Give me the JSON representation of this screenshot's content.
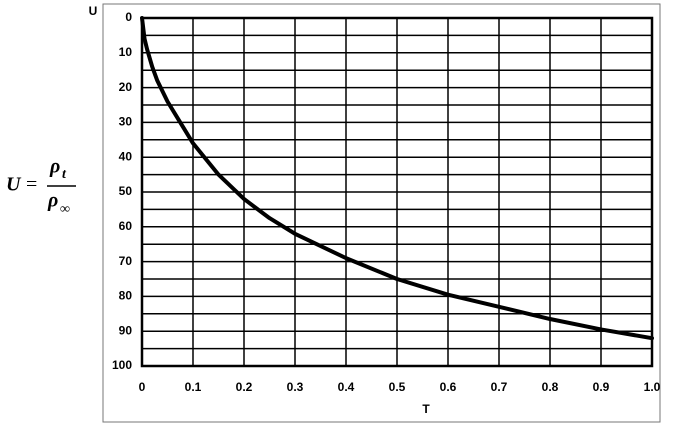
{
  "chart_data": {
    "type": "line",
    "x_label": "T",
    "y_label": "U",
    "formula": {
      "lhs": "U",
      "eq": "=",
      "num": "ρ",
      "num_sub": "t",
      "den": "ρ",
      "den_sub": "∞"
    },
    "x": [
      0,
      0.005,
      0.01,
      0.02,
      0.03,
      0.05,
      0.075,
      0.1,
      0.15,
      0.2,
      0.25,
      0.3,
      0.4,
      0.5,
      0.6,
      0.7,
      0.8,
      0.9,
      1.0
    ],
    "values": [
      0,
      6,
      9,
      14,
      18,
      24,
      30,
      36,
      45,
      52,
      57.5,
      62,
      69,
      75,
      79.5,
      83,
      86.5,
      89.5,
      92
    ],
    "color": "#000000",
    "xlim": [
      0,
      1
    ],
    "ylim": [
      0,
      100
    ],
    "y_inverted": true,
    "xticks": [
      0,
      0.1,
      0.2,
      0.3,
      0.4,
      0.5,
      0.6,
      0.7,
      0.8,
      0.9,
      {
        "value": 1,
        "label": "1.0"
      }
    ],
    "yticks": [
      0,
      10,
      20,
      30,
      40,
      50,
      60,
      70,
      80,
      90,
      100
    ],
    "y_minor_ticks": [
      5,
      15,
      25,
      35,
      45,
      55,
      65,
      75,
      85,
      95
    ],
    "grid": true
  }
}
